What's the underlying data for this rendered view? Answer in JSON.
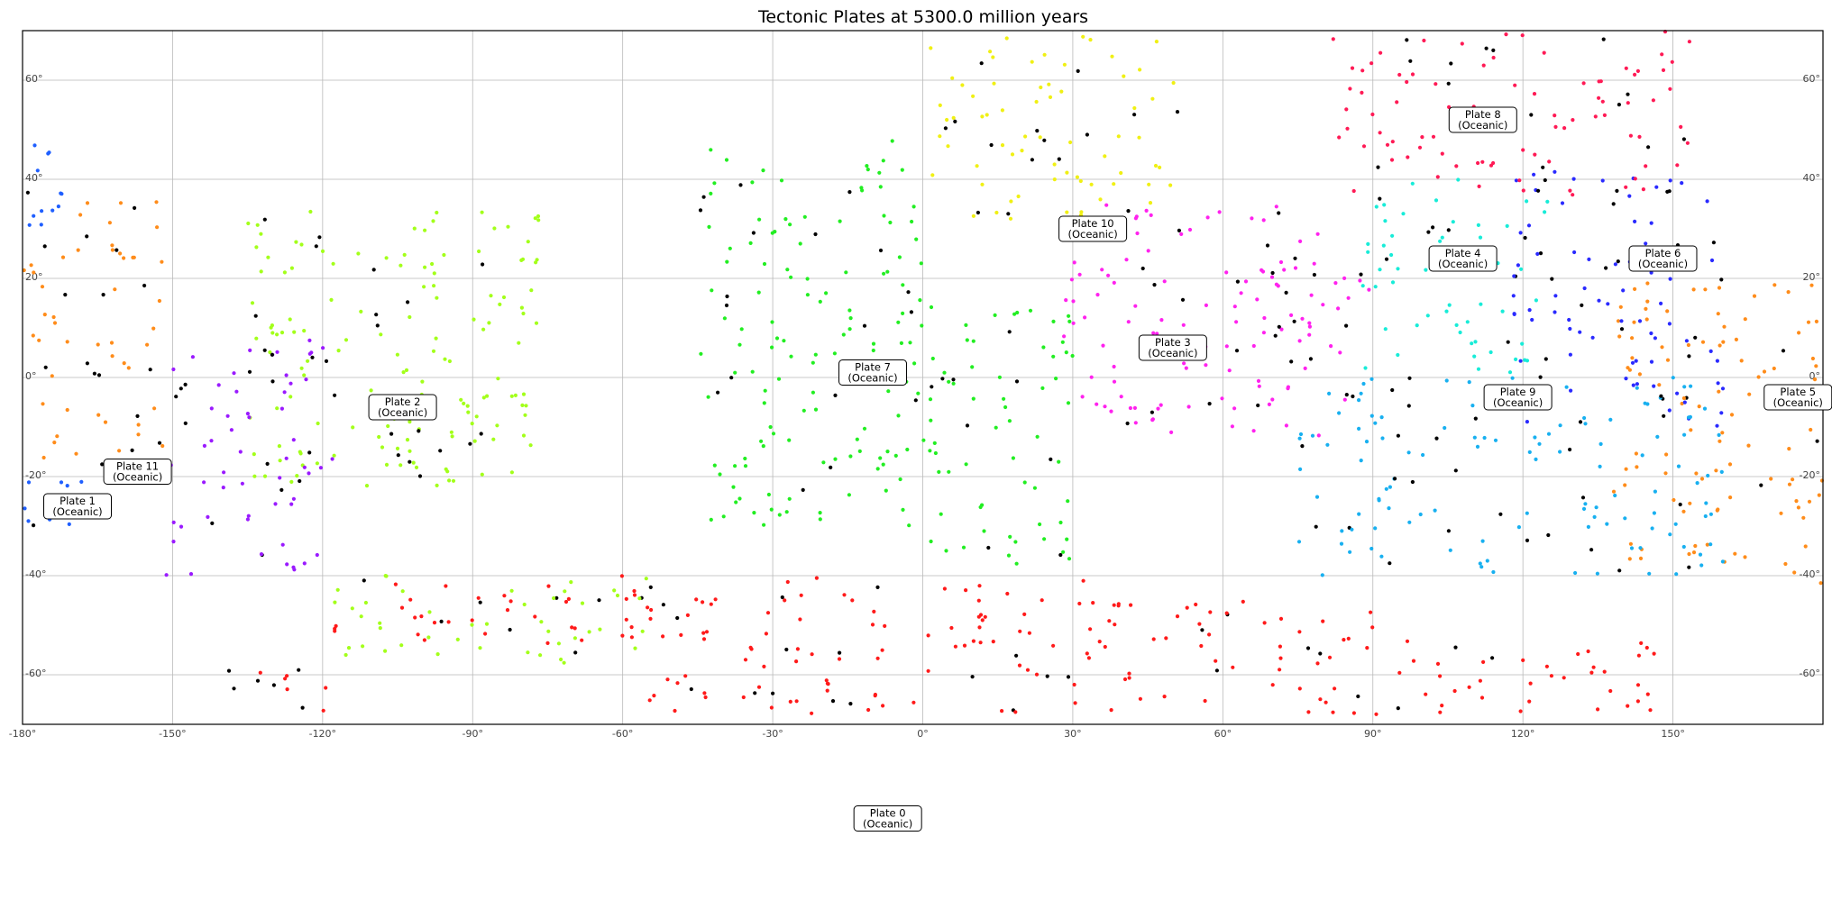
{
  "chart_data": {
    "type": "scatter",
    "title": "Tectonic Plates at 5300.0 million years",
    "xlim": [
      -180,
      180
    ],
    "ylim": [
      -70,
      70
    ],
    "x_ticks": [
      {
        "value": -180,
        "label": "-180°"
      },
      {
        "value": -150,
        "label": "-150°"
      },
      {
        "value": -120,
        "label": "-120°"
      },
      {
        "value": -90,
        "label": "-90°"
      },
      {
        "value": -60,
        "label": "-60°"
      },
      {
        "value": -30,
        "label": "-30°"
      },
      {
        "value": 0,
        "label": "0°"
      },
      {
        "value": 30,
        "label": "30°"
      },
      {
        "value": 60,
        "label": "60°"
      },
      {
        "value": 90,
        "label": "90°"
      },
      {
        "value": 120,
        "label": "120°"
      },
      {
        "value": 150,
        "label": "150°"
      }
    ],
    "y_ticks": [
      {
        "value": 60,
        "label": "60°"
      },
      {
        "value": 40,
        "label": "40°"
      },
      {
        "value": 20,
        "label": "20°"
      },
      {
        "value": 0,
        "label": "0°"
      },
      {
        "value": -20,
        "label": "-20°"
      },
      {
        "value": -40,
        "label": "-40°"
      },
      {
        "value": -60,
        "label": "-60°"
      }
    ],
    "grid": true,
    "boundary_color": "#000000",
    "plates": [
      {
        "name": "Plate 0",
        "type": "(Oceanic)",
        "color": "#ff1a1a",
        "label": [
          -7,
          -89
        ],
        "regions": [
          [
            -118,
            -45,
            -55,
            -40
          ],
          [
            -55,
            40,
            -68,
            -40
          ],
          [
            40,
            90,
            -68,
            -45
          ],
          [
            90,
            150,
            -68,
            -52
          ],
          [
            -140,
            -118,
            -68,
            -58
          ]
        ]
      },
      {
        "name": "Plate 1",
        "type": "(Oceanic)",
        "color": "#1f5fff",
        "label": [
          -169,
          -26
        ],
        "regions": [
          [
            -180,
            -162,
            -30,
            -18
          ],
          [
            -180,
            -172,
            30,
            48
          ]
        ]
      },
      {
        "name": "Plate 2",
        "type": "(Oceanic)",
        "color": "#a3ff1a",
        "label": [
          -104,
          -6
        ],
        "regions": [
          [
            -135,
            -75,
            -22,
            35
          ],
          [
            -120,
            -55,
            -58,
            -40
          ],
          [
            -110,
            -82,
            -20,
            0
          ]
        ]
      },
      {
        "name": "Plate 3",
        "type": "(Oceanic)",
        "color": "#ff22ee",
        "label": [
          50,
          6
        ],
        "regions": [
          [
            28,
            80,
            -12,
            35
          ],
          [
            60,
            90,
            -5,
            25
          ]
        ]
      },
      {
        "name": "Plate 4",
        "type": "(Oceanic)",
        "color": "#18ecd8",
        "label": [
          108,
          24
        ],
        "regions": [
          [
            88,
            125,
            0,
            40
          ]
        ]
      },
      {
        "name": "Plate 5",
        "type": "(Oceanic)",
        "color": "#ff8c1a",
        "label": [
          175,
          -4
        ],
        "regions": [
          [
            -180,
            -152,
            -18,
            38
          ],
          [
            138,
            180,
            -42,
            20
          ]
        ]
      },
      {
        "name": "Plate 6",
        "type": "(Oceanic)",
        "color": "#2a2aff",
        "label": [
          148,
          24
        ],
        "regions": [
          [
            118,
            160,
            -10,
            42
          ]
        ]
      },
      {
        "name": "Plate 7",
        "type": "(Oceanic)",
        "color": "#22ee22",
        "label": [
          -10,
          1
        ],
        "regions": [
          [
            -45,
            0,
            -30,
            48
          ],
          [
            0,
            30,
            -42,
            15
          ]
        ]
      },
      {
        "name": "Plate 8",
        "type": "(Oceanic)",
        "color": "#ff1a55",
        "label": [
          112,
          52
        ],
        "regions": [
          [
            82,
            155,
            36,
            70
          ]
        ]
      },
      {
        "name": "Plate 9",
        "type": "(Oceanic)",
        "color": "#18b0f0",
        "label": [
          119,
          -4
        ],
        "regions": [
          [
            75,
            160,
            -40,
            0
          ]
        ]
      },
      {
        "name": "Plate 10",
        "type": "(Oceanic)",
        "color": "#f0f014",
        "label": [
          34,
          30
        ],
        "regions": [
          [
            0,
            52,
            32,
            70
          ]
        ]
      },
      {
        "name": "Plate 11",
        "type": "(Oceanic)",
        "color": "#9a1aff",
        "label": [
          -157,
          -19
        ],
        "regions": [
          [
            -152,
            -118,
            -40,
            8
          ]
        ]
      }
    ]
  }
}
